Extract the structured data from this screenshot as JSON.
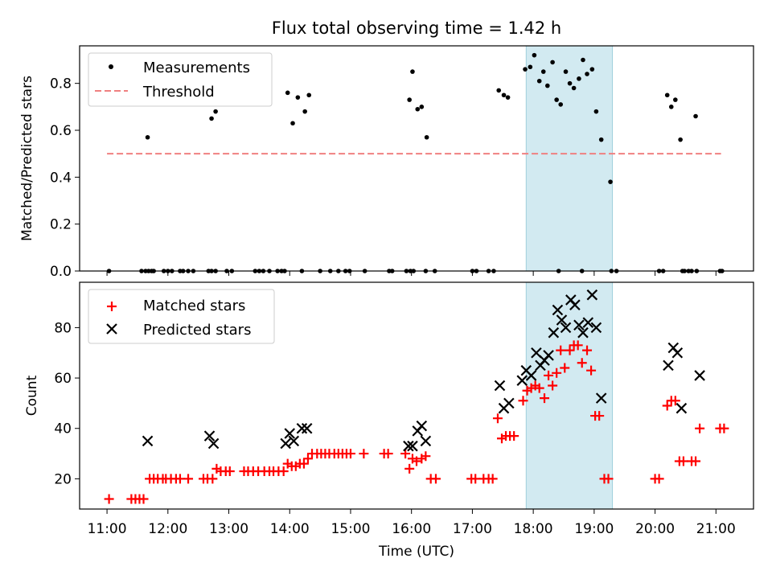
{
  "figure": {
    "title": "Flux total observing time = 1.42 h",
    "xlabel": "Time (UTC)"
  },
  "chart_data": [
    {
      "type": "scatter",
      "ylabel": "Matched/Predicted stars",
      "xlim": [
        "10:33",
        "21:37"
      ],
      "ylim": [
        0,
        0.96
      ],
      "y_ticks": [
        "0.0",
        "0.2",
        "0.4",
        "0.6",
        "0.8"
      ],
      "shaded_region": {
        "x": [
          "17:53",
          "19:18"
        ],
        "color": "#add8e6"
      },
      "legend": {
        "placement": "upper-left",
        "entries": [
          "Measurements",
          "Threshold"
        ]
      },
      "threshold": {
        "name": "Threshold",
        "y": 0.5,
        "x": [
          "11:00",
          "21:05"
        ],
        "color": "#f08080",
        "style": "dashed"
      },
      "series": [
        {
          "name": "Measurements",
          "marker": "dot",
          "color": "#000000",
          "points": [
            [
              "11:02",
              0
            ],
            [
              "11:34",
              0
            ],
            [
              "11:38",
              0
            ],
            [
              "11:41",
              0
            ],
            [
              "11:44",
              0
            ],
            [
              "11:46",
              0
            ],
            [
              "11:56",
              0
            ],
            [
              "12:00",
              0
            ],
            [
              "12:04",
              0
            ],
            [
              "12:12",
              0
            ],
            [
              "12:15",
              0
            ],
            [
              "12:20",
              0
            ],
            [
              "12:25",
              0
            ],
            [
              "12:40",
              0
            ],
            [
              "12:43",
              0
            ],
            [
              "12:47",
              0
            ],
            [
              "12:58",
              0
            ],
            [
              "13:03",
              0
            ],
            [
              "13:26",
              0
            ],
            [
              "13:30",
              0
            ],
            [
              "13:34",
              0
            ],
            [
              "13:40",
              0
            ],
            [
              "13:48",
              0
            ],
            [
              "13:52",
              0
            ],
            [
              "13:55",
              0
            ],
            [
              "14:12",
              0
            ],
            [
              "14:30",
              0
            ],
            [
              "14:40",
              0
            ],
            [
              "14:48",
              0
            ],
            [
              "14:55",
              0
            ],
            [
              "14:59",
              0
            ],
            [
              "15:14",
              0
            ],
            [
              "15:38",
              0
            ],
            [
              "15:41",
              0
            ],
            [
              "15:55",
              0
            ],
            [
              "15:59",
              0
            ],
            [
              "16:02",
              0
            ],
            [
              "16:14",
              0
            ],
            [
              "16:23",
              0
            ],
            [
              "17:00",
              0
            ],
            [
              "17:04",
              0
            ],
            [
              "17:16",
              0
            ],
            [
              "17:21",
              0
            ],
            [
              "18:25",
              0
            ],
            [
              "18:48",
              0
            ],
            [
              "19:17",
              0
            ],
            [
              "19:22",
              0
            ],
            [
              "20:04",
              0
            ],
            [
              "20:08",
              0
            ],
            [
              "20:27",
              0
            ],
            [
              "20:29",
              0
            ],
            [
              "20:33",
              0
            ],
            [
              "20:36",
              0
            ],
            [
              "20:41",
              0
            ],
            [
              "21:04",
              0
            ],
            [
              "21:06",
              0
            ],
            [
              "11:40",
              0.57
            ],
            [
              "12:43",
              0.65
            ],
            [
              "12:47",
              0.68
            ],
            [
              "13:58",
              0.76
            ],
            [
              "14:03",
              0.63
            ],
            [
              "14:08",
              0.74
            ],
            [
              "14:15",
              0.68
            ],
            [
              "14:19",
              0.75
            ],
            [
              "15:58",
              0.73
            ],
            [
              "16:01",
              0.85
            ],
            [
              "16:06",
              0.69
            ],
            [
              "16:10",
              0.7
            ],
            [
              "16:15",
              0.57
            ],
            [
              "17:26",
              0.77
            ],
            [
              "17:31",
              0.75
            ],
            [
              "17:35",
              0.74
            ],
            [
              "17:52",
              0.86
            ],
            [
              "17:57",
              0.87
            ],
            [
              "18:01",
              0.92
            ],
            [
              "18:06",
              0.81
            ],
            [
              "18:10",
              0.85
            ],
            [
              "18:14",
              0.79
            ],
            [
              "18:19",
              0.89
            ],
            [
              "18:23",
              0.73
            ],
            [
              "18:27",
              0.71
            ],
            [
              "18:32",
              0.85
            ],
            [
              "18:36",
              0.8
            ],
            [
              "18:40",
              0.78
            ],
            [
              "18:45",
              0.82
            ],
            [
              "18:49",
              0.9
            ],
            [
              "18:53",
              0.84
            ],
            [
              "18:58",
              0.86
            ],
            [
              "19:02",
              0.68
            ],
            [
              "19:07",
              0.56
            ],
            [
              "19:16",
              0.38
            ],
            [
              "20:12",
              0.75
            ],
            [
              "20:16",
              0.7
            ],
            [
              "20:20",
              0.73
            ],
            [
              "20:25",
              0.56
            ],
            [
              "20:40",
              0.66
            ]
          ]
        }
      ]
    },
    {
      "type": "scatter",
      "ylabel": "Count",
      "xlabel": "Time (UTC)",
      "xlim": [
        "10:33",
        "21:37"
      ],
      "ylim": [
        8,
        98
      ],
      "y_ticks": [
        "20",
        "40",
        "60",
        "80"
      ],
      "x_ticks": [
        "11:00",
        "12:00",
        "13:00",
        "14:00",
        "15:00",
        "16:00",
        "17:00",
        "18:00",
        "19:00",
        "20:00",
        "21:00"
      ],
      "shaded_region": {
        "x": [
          "17:53",
          "19:18"
        ],
        "color": "#add8e6"
      },
      "legend": {
        "placement": "upper-left",
        "entries": [
          "Matched stars",
          "Predicted stars"
        ]
      },
      "series": [
        {
          "name": "Matched stars",
          "marker": "plus",
          "color": "#ff0000",
          "points": [
            [
              "11:02",
              12
            ],
            [
              "11:24",
              12
            ],
            [
              "11:28",
              12
            ],
            [
              "11:32",
              12
            ],
            [
              "11:36",
              12
            ],
            [
              "11:42",
              20
            ],
            [
              "11:46",
              20
            ],
            [
              "11:50",
              20
            ],
            [
              "11:55",
              20
            ],
            [
              "11:58",
              20
            ],
            [
              "12:03",
              20
            ],
            [
              "12:08",
              20
            ],
            [
              "12:12",
              20
            ],
            [
              "12:20",
              20
            ],
            [
              "12:35",
              20
            ],
            [
              "12:39",
              20
            ],
            [
              "12:44",
              20
            ],
            [
              "12:48",
              24
            ],
            [
              "12:52",
              23
            ],
            [
              "12:57",
              23
            ],
            [
              "13:01",
              23
            ],
            [
              "13:15",
              23
            ],
            [
              "13:19",
              23
            ],
            [
              "13:24",
              23
            ],
            [
              "13:29",
              23
            ],
            [
              "13:35",
              23
            ],
            [
              "13:40",
              23
            ],
            [
              "13:44",
              23
            ],
            [
              "13:49",
              23
            ],
            [
              "13:54",
              23
            ],
            [
              "13:58",
              26
            ],
            [
              "14:02",
              25
            ],
            [
              "14:06",
              25
            ],
            [
              "14:10",
              26
            ],
            [
              "14:14",
              26
            ],
            [
              "14:18",
              28
            ],
            [
              "14:22",
              30
            ],
            [
              "14:27",
              30
            ],
            [
              "14:31",
              30
            ],
            [
              "14:35",
              30
            ],
            [
              "14:39",
              30
            ],
            [
              "14:44",
              30
            ],
            [
              "14:48",
              30
            ],
            [
              "14:52",
              30
            ],
            [
              "14:56",
              30
            ],
            [
              "15:00",
              30
            ],
            [
              "15:13",
              30
            ],
            [
              "15:33",
              30
            ],
            [
              "15:37",
              30
            ],
            [
              "15:54",
              30
            ],
            [
              "15:58",
              24
            ],
            [
              "16:01",
              28
            ],
            [
              "16:05",
              27
            ],
            [
              "16:10",
              28
            ],
            [
              "16:14",
              29
            ],
            [
              "16:19",
              20
            ],
            [
              "16:24",
              20
            ],
            [
              "16:59",
              20
            ],
            [
              "17:03",
              20
            ],
            [
              "17:11",
              20
            ],
            [
              "17:16",
              20
            ],
            [
              "17:20",
              20
            ],
            [
              "17:25",
              44
            ],
            [
              "17:29",
              36
            ],
            [
              "17:33",
              37
            ],
            [
              "17:37",
              37
            ],
            [
              "17:41",
              37
            ],
            [
              "17:50",
              51
            ],
            [
              "17:54",
              55
            ],
            [
              "17:58",
              56
            ],
            [
              "18:02",
              57
            ],
            [
              "18:06",
              56
            ],
            [
              "18:11",
              52
            ],
            [
              "18:15",
              61
            ],
            [
              "18:19",
              57
            ],
            [
              "18:23",
              62
            ],
            [
              "18:27",
              71
            ],
            [
              "18:31",
              64
            ],
            [
              "18:36",
              71
            ],
            [
              "18:40",
              73
            ],
            [
              "18:44",
              73
            ],
            [
              "18:48",
              66
            ],
            [
              "18:53",
              71
            ],
            [
              "18:57",
              63
            ],
            [
              "19:01",
              45
            ],
            [
              "19:05",
              45
            ],
            [
              "19:10",
              20
            ],
            [
              "19:14",
              20
            ],
            [
              "20:00",
              20
            ],
            [
              "20:04",
              20
            ],
            [
              "20:12",
              49
            ],
            [
              "20:16",
              51
            ],
            [
              "20:20",
              51
            ],
            [
              "20:24",
              27
            ],
            [
              "20:28",
              27
            ],
            [
              "20:36",
              27
            ],
            [
              "20:40",
              27
            ],
            [
              "20:44",
              40
            ],
            [
              "21:04",
              40
            ],
            [
              "21:08",
              40
            ]
          ]
        },
        {
          "name": "Predicted stars",
          "marker": "x",
          "color": "#000000",
          "points": [
            [
              "11:40",
              35
            ],
            [
              "12:41",
              37
            ],
            [
              "12:45",
              34
            ],
            [
              "13:56",
              34
            ],
            [
              "14:00",
              38
            ],
            [
              "14:04",
              35
            ],
            [
              "14:12",
              40
            ],
            [
              "14:17",
              40
            ],
            [
              "15:57",
              33
            ],
            [
              "16:01",
              33
            ],
            [
              "16:06",
              39
            ],
            [
              "16:10",
              41
            ],
            [
              "16:14",
              35
            ],
            [
              "17:27",
              57
            ],
            [
              "17:31",
              48
            ],
            [
              "17:36",
              50
            ],
            [
              "17:49",
              59
            ],
            [
              "17:53",
              63
            ],
            [
              "17:58",
              61
            ],
            [
              "18:03",
              70
            ],
            [
              "18:07",
              65
            ],
            [
              "18:11",
              67
            ],
            [
              "18:15",
              69
            ],
            [
              "18:20",
              78
            ],
            [
              "18:24",
              87
            ],
            [
              "18:28",
              83
            ],
            [
              "18:32",
              80
            ],
            [
              "18:37",
              91
            ],
            [
              "18:41",
              89
            ],
            [
              "18:45",
              81
            ],
            [
              "18:49",
              78
            ],
            [
              "18:54",
              82
            ],
            [
              "18:58",
              93
            ],
            [
              "19:02",
              80
            ],
            [
              "19:07",
              52
            ],
            [
              "20:13",
              65
            ],
            [
              "20:18",
              72
            ],
            [
              "20:22",
              70
            ],
            [
              "20:26",
              48
            ],
            [
              "20:44",
              61
            ]
          ]
        }
      ]
    }
  ]
}
